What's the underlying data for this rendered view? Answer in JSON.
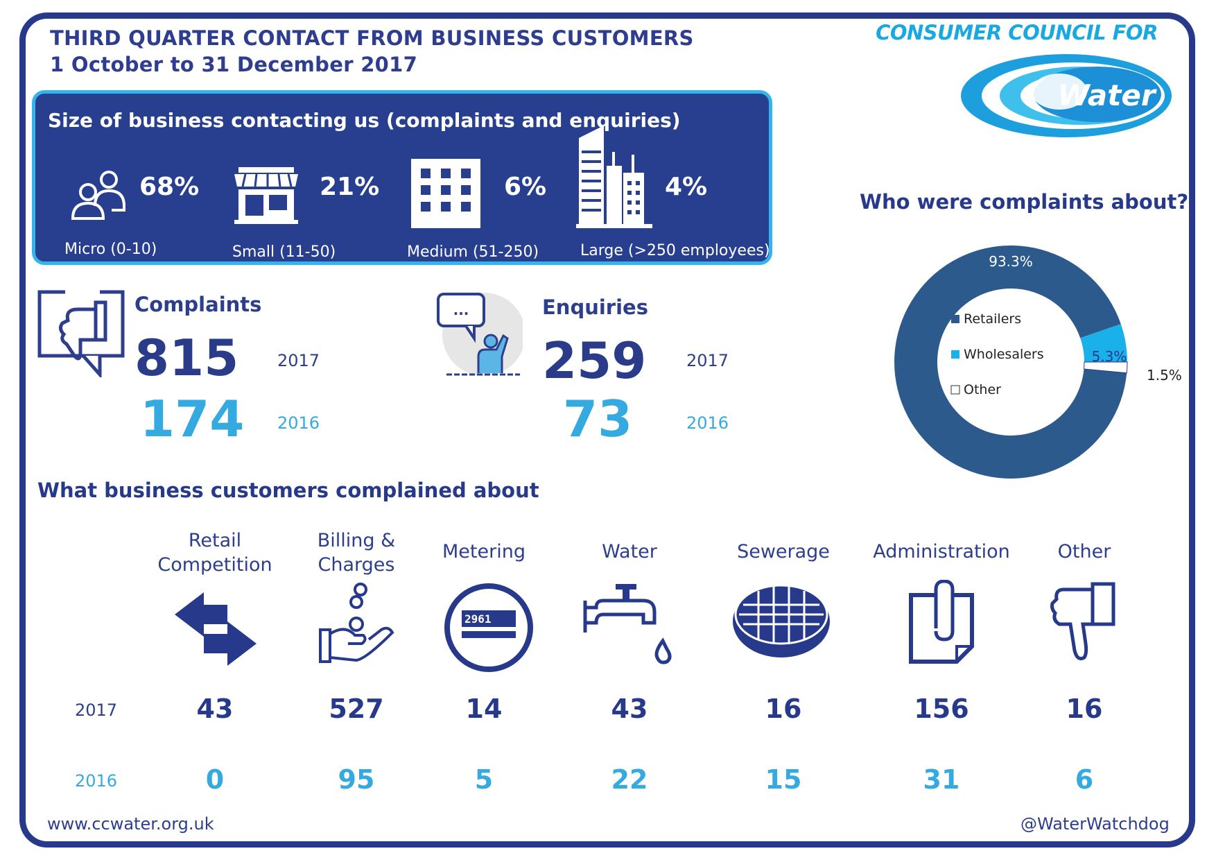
{
  "header": {
    "title_line1": "THIRD QUARTER CONTACT FROM BUSINESS CUSTOMERS",
    "title_line2": "1 October to 31 December 2017"
  },
  "logo": {
    "line1": "CONSUMER COUNCIL FOR",
    "word": "Water"
  },
  "business_size": {
    "heading": "Size of business contacting us (complaints and enquiries)",
    "segments": [
      {
        "pct": "68%",
        "label": "Micro (0-10)",
        "icon": "people-icon"
      },
      {
        "pct": "21%",
        "label": "Small (11-50)",
        "icon": "shop-icon"
      },
      {
        "pct": "6%",
        "label": "Medium (51-250)",
        "icon": "office-building-icon"
      },
      {
        "pct": "4%",
        "label": "Large (>250 employees)",
        "icon": "skyscraper-icon"
      }
    ]
  },
  "complaints": {
    "label": "Complaints",
    "value_2017": "815",
    "year_2017": "2017",
    "value_2016": "174",
    "year_2016": "2016"
  },
  "enquiries": {
    "label": "Enquiries",
    "value_2017": "259",
    "year_2017": "2017",
    "value_2016": "73",
    "year_2016": "2016"
  },
  "chart_data": [
    {
      "type": "pie",
      "title": "Who were complaints about?",
      "categories": [
        "Retailers",
        "Wholesalers",
        "Other"
      ],
      "values": [
        93.3,
        5.3,
        1.5
      ],
      "labels": [
        "93.3%",
        "5.3%",
        "1.5%"
      ],
      "colors": [
        "#2d5a8c",
        "#1ab0ea",
        "#ffffff"
      ],
      "legend": "center"
    },
    {
      "type": "table",
      "title": "What business customers complained about",
      "categories": [
        "Retail Competition",
        "Billing & Charges",
        "Metering",
        "Water",
        "Sewerage",
        "Administration",
        "Other"
      ],
      "series": [
        {
          "name": "2017",
          "values": [
            43,
            527,
            14,
            43,
            16,
            156,
            16
          ]
        },
        {
          "name": "2016",
          "values": [
            0,
            95,
            5,
            22,
            15,
            31,
            6
          ]
        }
      ]
    }
  ],
  "categories_display": [
    {
      "line1": "Retail",
      "line2": "Competition",
      "icon": "arrows-exchange-icon"
    },
    {
      "line1": "Billing &",
      "line2": "Charges",
      "icon": "hand-coins-icon"
    },
    {
      "line1": "Metering",
      "line2": "",
      "icon": "water-meter-icon"
    },
    {
      "line1": "Water",
      "line2": "",
      "icon": "tap-icon"
    },
    {
      "line1": "Sewerage",
      "line2": "",
      "icon": "manhole-cover-icon"
    },
    {
      "line1": "Administration",
      "line2": "",
      "icon": "paperclip-document-icon"
    },
    {
      "line1": "Other",
      "line2": "",
      "icon": "thumbs-down-icon"
    }
  ],
  "years": {
    "current": "2017",
    "previous": "2016"
  },
  "footer": {
    "website": "www.ccwater.org.uk",
    "twitter": "@WaterWatchdog"
  },
  "colors": {
    "navy": "#27398a",
    "light_blue": "#35aae0",
    "retailers": "#2d5a8c",
    "wholesalers": "#1ab0ea"
  }
}
